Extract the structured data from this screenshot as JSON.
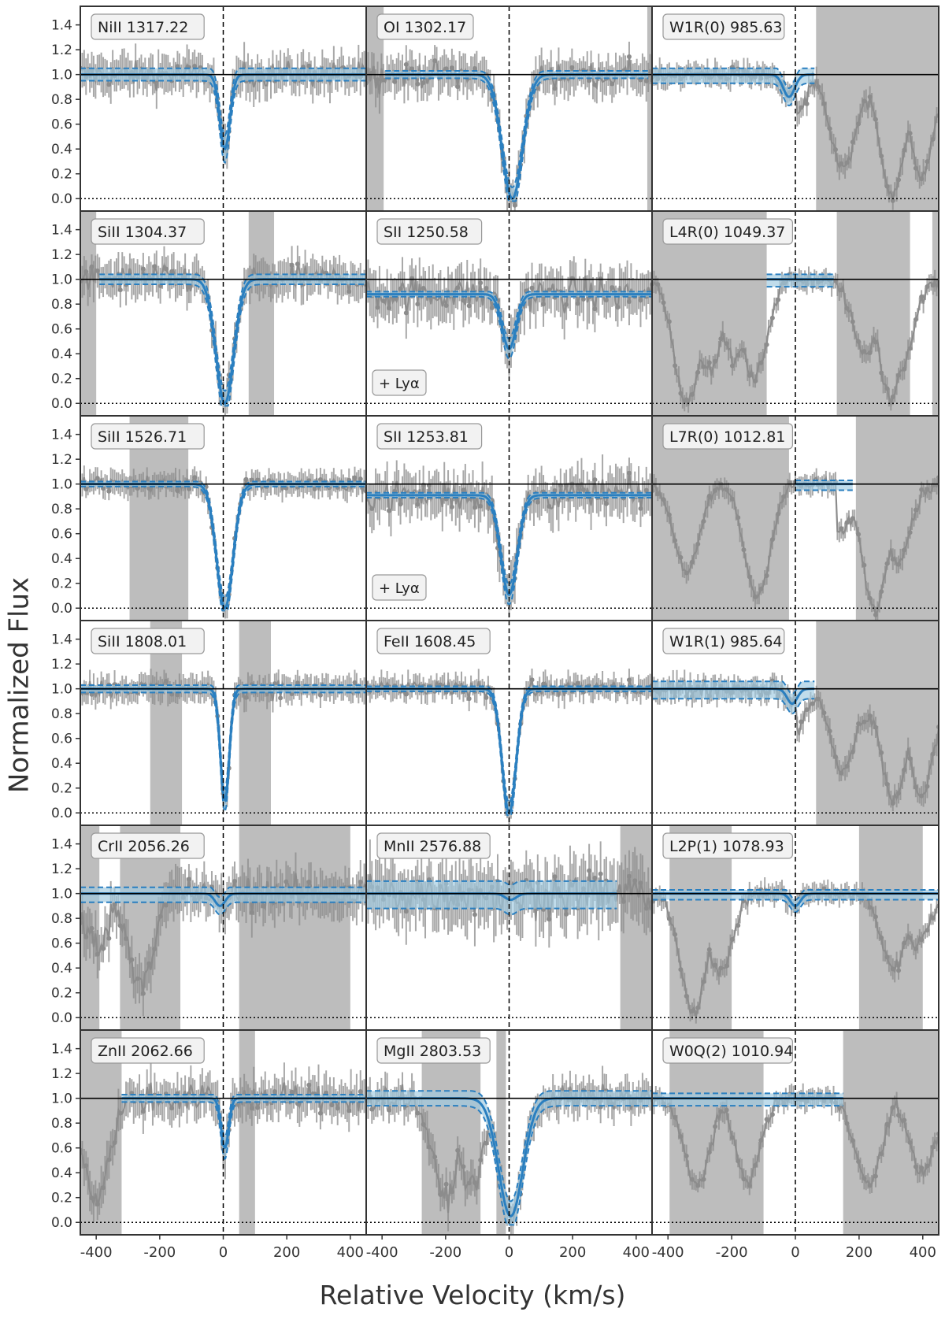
{
  "figure": {
    "ylabel": "Normalized Flux",
    "xlabel": "Relative Velocity (km/s)",
    "colors": {
      "data": "#8c8c8c",
      "model": "#2a7fc0",
      "band": "#9ecae1",
      "mask": "#bdbdbd",
      "axes": "#333333"
    }
  },
  "chart_data": {
    "type": "line",
    "layout": "grid 6 rows x 3 columns, shared axes",
    "xlim": [
      -450,
      450
    ],
    "ylim": [
      -0.1,
      1.55
    ],
    "xticks": [
      -400,
      -200,
      0,
      200,
      400
    ],
    "yticks": [
      0.0,
      0.2,
      0.4,
      0.6,
      0.8,
      1.0,
      1.2,
      1.4
    ],
    "xtick_labels": [
      "-400",
      "-200",
      "0",
      "200",
      "400"
    ],
    "ytick_labels": [
      "0.0",
      "0.2",
      "0.4",
      "0.6",
      "0.8",
      "1.0",
      "1.2",
      "1.4"
    ],
    "reference_lines": {
      "continuum": 1.0,
      "zero": 0.0,
      "v0": 0
    },
    "panels": [
      {
        "label": "NiII 1317.22",
        "kind": "metal",
        "cont": 1.0,
        "depth": 0.6,
        "center": 5,
        "sigma": 16,
        "model": [
          -450,
          450
        ],
        "band": 0.05,
        "mask": [],
        "noise": 0.13
      },
      {
        "label": "OI 1302.17",
        "kind": "metal",
        "cont": 1.0,
        "depth": 1.0,
        "center": 10,
        "sigma": 32,
        "model": [
          -390,
          440
        ],
        "band": 0.03,
        "mask": [
          [
            -450,
            -395
          ],
          [
            435,
            450
          ]
        ],
        "noise": 0.13
      },
      {
        "label": "W1R(0) 985.63",
        "kind": "h2",
        "cont": 1.0,
        "depth": 0.18,
        "center": -20,
        "sigma": 18,
        "model": [
          -450,
          60
        ],
        "band": 0.05,
        "mask": [
          [
            65,
            450
          ]
        ],
        "noise": 0.08,
        "troughs": [
          [
            -100,
            0.45
          ],
          [
            -15,
            0.6
          ],
          [
            150,
            0.25
          ],
          [
            220,
            0.75
          ],
          [
            305,
            0.05
          ],
          [
            395,
            0.2
          ]
        ]
      },
      {
        "label": "SiII 1304.37",
        "kind": "metal",
        "cont": 1.0,
        "depth": 1.0,
        "center": 5,
        "sigma": 28,
        "model": [
          -390,
          450
        ],
        "band": 0.04,
        "mask": [
          [
            -450,
            -400
          ],
          [
            80,
            160
          ]
        ],
        "noise": 0.13
      },
      {
        "label": "SII 1250.58",
        "kind": "metal",
        "cont": 0.88,
        "depth": 0.5,
        "center": 0,
        "sigma": 22,
        "model": [
          -450,
          450
        ],
        "band": 0.02,
        "mask": [],
        "noise": 0.17,
        "note": "+ Lyα",
        "contSlope": true
      },
      {
        "label": "L4R(0) 1049.37",
        "kind": "h2",
        "cont": 1.0,
        "depth": 0.0,
        "center": 0,
        "sigma": 10,
        "model": [
          -90,
          120
        ],
        "band": 0.04,
        "mask": [
          [
            -450,
            -90
          ],
          [
            130,
            360
          ],
          [
            430,
            450
          ]
        ],
        "noise": 0.07,
        "troughs": [
          [
            -340,
            0.0
          ],
          [
            -270,
            0.25
          ],
          [
            -190,
            0.35
          ],
          [
            -130,
            0.2
          ],
          [
            220,
            0.4
          ],
          [
            300,
            0.05
          ],
          [
            330,
            0.3
          ]
        ]
      },
      {
        "label": "SiII 1526.71",
        "kind": "metal",
        "cont": 1.0,
        "depth": 1.0,
        "center": 5,
        "sigma": 26,
        "model": [
          -450,
          450
        ],
        "band": 0.02,
        "mask": [
          [
            -295,
            -110
          ]
        ],
        "noise": 0.08
      },
      {
        "label": "SII 1253.81",
        "kind": "metal",
        "cont": 0.91,
        "depth": 0.88,
        "center": 0,
        "sigma": 26,
        "model": [
          -450,
          450
        ],
        "band": 0.02,
        "mask": [],
        "noise": 0.16,
        "note": "+ Lyα",
        "contSlope": true
      },
      {
        "label": "L7R(0) 1012.81",
        "kind": "h2",
        "cont": 1.0,
        "depth": 0.0,
        "center": 0,
        "sigma": 10,
        "model": [
          0,
          180
        ],
        "band": 0.03,
        "mask": [
          [
            -450,
            -20
          ],
          [
            190,
            450
          ]
        ],
        "noise": 0.07,
        "troughs": [
          [
            -340,
            0.3
          ],
          [
            -120,
            0.1
          ],
          [
            140,
            0.6
          ],
          [
            250,
            0.0
          ],
          [
            320,
            0.4
          ]
        ]
      },
      {
        "label": "SiII 1808.01",
        "kind": "metal",
        "cont": 1.0,
        "depth": 0.9,
        "center": 5,
        "sigma": 14,
        "model": [
          -450,
          450
        ],
        "band": 0.03,
        "mask": [
          [
            -230,
            -130
          ],
          [
            50,
            150
          ]
        ],
        "noise": 0.09
      },
      {
        "label": "FeII 1608.45",
        "kind": "metal",
        "cont": 1.0,
        "depth": 1.0,
        "center": 0,
        "sigma": 22,
        "model": [
          -450,
          450
        ],
        "band": 0.02,
        "mask": [],
        "noise": 0.08
      },
      {
        "label": "W1R(1) 985.64",
        "kind": "h2",
        "cont": 1.0,
        "depth": 0.12,
        "center": -10,
        "sigma": 16,
        "model": [
          -450,
          60
        ],
        "band": 0.06,
        "mask": [
          [
            65,
            450
          ]
        ],
        "noise": 0.08,
        "troughs": [
          [
            -15,
            0.6
          ],
          [
            150,
            0.35
          ],
          [
            230,
            0.72
          ],
          [
            310,
            0.1
          ],
          [
            395,
            0.15
          ]
        ]
      },
      {
        "label": "CrII 2056.26",
        "kind": "metal",
        "cont": 1.0,
        "depth": 0.1,
        "center": -10,
        "sigma": 16,
        "model": [
          -450,
          450
        ],
        "band": 0.05,
        "mask": [
          [
            -450,
            -390
          ],
          [
            -325,
            -135
          ],
          [
            50,
            400
          ]
        ],
        "noise": 0.16,
        "troughs": [
          [
            -260,
            0.3
          ],
          [
            -400,
            0.6
          ]
        ]
      },
      {
        "label": "MnII 2576.88",
        "kind": "metal",
        "cont": 1.0,
        "depth": 0.05,
        "center": 5,
        "sigma": 18,
        "model": [
          -450,
          340
        ],
        "band": 0.1,
        "mask": [
          [
            350,
            450
          ]
        ],
        "noise": 0.22
      },
      {
        "label": "L2P(1) 1078.93",
        "kind": "h2",
        "cont": 1.0,
        "depth": 0.1,
        "center": 0,
        "sigma": 16,
        "model": [
          -450,
          450
        ],
        "band": 0.03,
        "mask": [
          [
            -395,
            -200
          ],
          [
            200,
            400
          ]
        ],
        "noise": 0.07,
        "troughs": [
          [
            -320,
            0.05
          ],
          [
            -240,
            0.35
          ],
          [
            310,
            0.4
          ],
          [
            380,
            0.6
          ]
        ]
      },
      {
        "label": "ZnII 2062.66",
        "kind": "metal",
        "cont": 1.0,
        "depth": 0.4,
        "center": 5,
        "sigma": 12,
        "model": [
          -320,
          450
        ],
        "band": 0.03,
        "mask": [
          [
            -450,
            -320
          ],
          [
            50,
            100
          ]
        ],
        "noise": 0.14,
        "troughs": [
          [
            -400,
            0.2
          ]
        ]
      },
      {
        "label": "MgII 2803.53",
        "kind": "metal",
        "cont": 1.0,
        "depth": 0.95,
        "center": 5,
        "sigma": 38,
        "model": [
          -450,
          450
        ],
        "band": 0.06,
        "mask": [
          [
            -275,
            -90
          ],
          [
            -40,
            -10
          ]
        ],
        "noise": 0.12,
        "troughs": [
          [
            -200,
            0.2
          ],
          [
            -120,
            0.3
          ]
        ]
      },
      {
        "label": "W0Q(2) 1010.94",
        "kind": "h2",
        "cont": 1.0,
        "depth": 0.0,
        "center": 0,
        "sigma": 10,
        "model": [
          -450,
          150
        ],
        "band": 0.04,
        "mask": [
          [
            -395,
            -100
          ],
          [
            150,
            450
          ]
        ],
        "noise": 0.07,
        "troughs": [
          [
            -310,
            0.3
          ],
          [
            -150,
            0.35
          ],
          [
            230,
            0.3
          ],
          [
            400,
            0.4
          ]
        ]
      }
    ]
  }
}
